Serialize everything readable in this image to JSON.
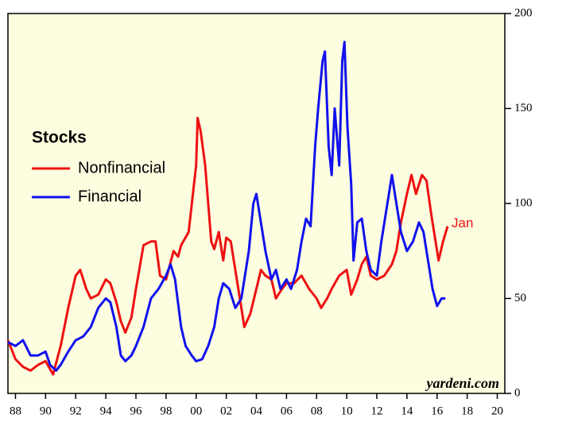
{
  "chart_data": {
    "type": "line",
    "legend_title": "Stocks",
    "annotation": "Jan",
    "source": "yardeni.com",
    "xlim": [
      1987.5,
      2020.5
    ],
    "xticks": [
      {
        "value": 1988,
        "label": "88"
      },
      {
        "value": 1990,
        "label": "90"
      },
      {
        "value": 1992,
        "label": "92"
      },
      {
        "value": 1994,
        "label": "94"
      },
      {
        "value": 1996,
        "label": "96"
      },
      {
        "value": 1998,
        "label": "98"
      },
      {
        "value": 2000,
        "label": "00"
      },
      {
        "value": 2002,
        "label": "02"
      },
      {
        "value": 2004,
        "label": "04"
      },
      {
        "value": 2006,
        "label": "06"
      },
      {
        "value": 2008,
        "label": "08"
      },
      {
        "value": 2010,
        "label": "10"
      },
      {
        "value": 2012,
        "label": "12"
      },
      {
        "value": 2014,
        "label": "14"
      },
      {
        "value": 2016,
        "label": "16"
      },
      {
        "value": 2018,
        "label": "18"
      },
      {
        "value": 2020,
        "label": "20"
      }
    ],
    "ylim": [
      0,
      200
    ],
    "yticks": [
      0,
      50,
      100,
      150,
      200
    ],
    "series": [
      {
        "name": "Nonfinancial",
        "color": "#ee1111",
        "x": [
          1987.5,
          1988,
          1988.5,
          1989,
          1989.5,
          1990,
          1990.5,
          1991,
          1991.5,
          1992,
          1992.3,
          1992.7,
          1993,
          1993.5,
          1994,
          1994.3,
          1994.7,
          1995,
          1995.3,
          1995.7,
          1996,
          1996.5,
          1997,
          1997.3,
          1997.6,
          1998,
          1998.5,
          1998.8,
          1999,
          1999.5,
          2000,
          2000.1,
          2000.3,
          2000.6,
          2000.9,
          2001,
          2001.2,
          2001.5,
          2001.8,
          2002,
          2002.3,
          2002.7,
          2003,
          2003.2,
          2003.6,
          2004,
          2004.3,
          2004.6,
          2005,
          2005.3,
          2005.7,
          2006,
          2006.5,
          2007,
          2007.5,
          2008,
          2008.3,
          2008.7,
          2009,
          2009.5,
          2010,
          2010.3,
          2010.7,
          2011,
          2011.3,
          2011.6,
          2012,
          2012.5,
          2013,
          2013.3,
          2013.6,
          2014,
          2014.3,
          2014.6,
          2015,
          2015.3,
          2015.6,
          2015.9,
          2016.1,
          2016.4,
          2016.7
        ],
        "values": [
          28,
          18,
          14,
          12,
          15,
          17,
          10,
          25,
          45,
          62,
          65,
          55,
          50,
          52,
          60,
          58,
          48,
          38,
          32,
          40,
          55,
          78,
          80,
          80,
          62,
          60,
          75,
          72,
          78,
          85,
          120,
          145,
          138,
          120,
          90,
          80,
          76,
          85,
          70,
          82,
          80,
          60,
          45,
          35,
          42,
          55,
          65,
          62,
          60,
          50,
          55,
          58,
          58,
          62,
          55,
          50,
          45,
          50,
          55,
          62,
          65,
          52,
          60,
          68,
          72,
          62,
          60,
          62,
          68,
          75,
          90,
          105,
          115,
          105,
          115,
          112,
          95,
          80,
          70,
          80,
          88
        ]
      },
      {
        "name": "Financial",
        "color": "#1111ee",
        "x": [
          1987.5,
          1988,
          1988.5,
          1989,
          1989.5,
          1990,
          1990.3,
          1990.7,
          1991,
          1991.5,
          1992,
          1992.5,
          1993,
          1993.5,
          1994,
          1994.3,
          1994.7,
          1995,
          1995.3,
          1995.7,
          1996,
          1996.5,
          1997,
          1997.5,
          1998,
          1998.3,
          1998.6,
          1999,
          1999.3,
          1999.7,
          2000,
          2000.4,
          2000.8,
          2001.2,
          2001.5,
          2001.8,
          2002.2,
          2002.6,
          2003,
          2003.5,
          2003.8,
          2004,
          2004.3,
          2004.6,
          2005,
          2005.3,
          2005.6,
          2006,
          2006.3,
          2006.7,
          2007,
          2007.3,
          2007.6,
          2007.9,
          2008.1,
          2008.4,
          2008.55,
          2008.8,
          2009,
          2009.2,
          2009.5,
          2009.7,
          2009.85,
          2010.05,
          2010.3,
          2010.45,
          2010.7,
          2011,
          2011.3,
          2011.6,
          2012,
          2012.3,
          2012.7,
          2013,
          2013.3,
          2013.6,
          2014,
          2014.4,
          2014.8,
          2015.1,
          2015.4,
          2015.7,
          2016,
          2016.3,
          2016.55
        ],
        "values": [
          27,
          25,
          28,
          20,
          20,
          22,
          15,
          12,
          15,
          22,
          28,
          30,
          35,
          45,
          50,
          48,
          35,
          20,
          17,
          20,
          25,
          35,
          50,
          55,
          62,
          68,
          60,
          35,
          25,
          20,
          17,
          18,
          25,
          35,
          50,
          58,
          55,
          45,
          50,
          75,
          100,
          105,
          90,
          75,
          60,
          65,
          55,
          60,
          55,
          65,
          80,
          92,
          88,
          130,
          150,
          175,
          180,
          130,
          115,
          150,
          120,
          175,
          185,
          140,
          110,
          70,
          90,
          92,
          75,
          65,
          62,
          80,
          100,
          115,
          100,
          85,
          75,
          80,
          90,
          85,
          70,
          55,
          46,
          50,
          50
        ]
      }
    ]
  }
}
